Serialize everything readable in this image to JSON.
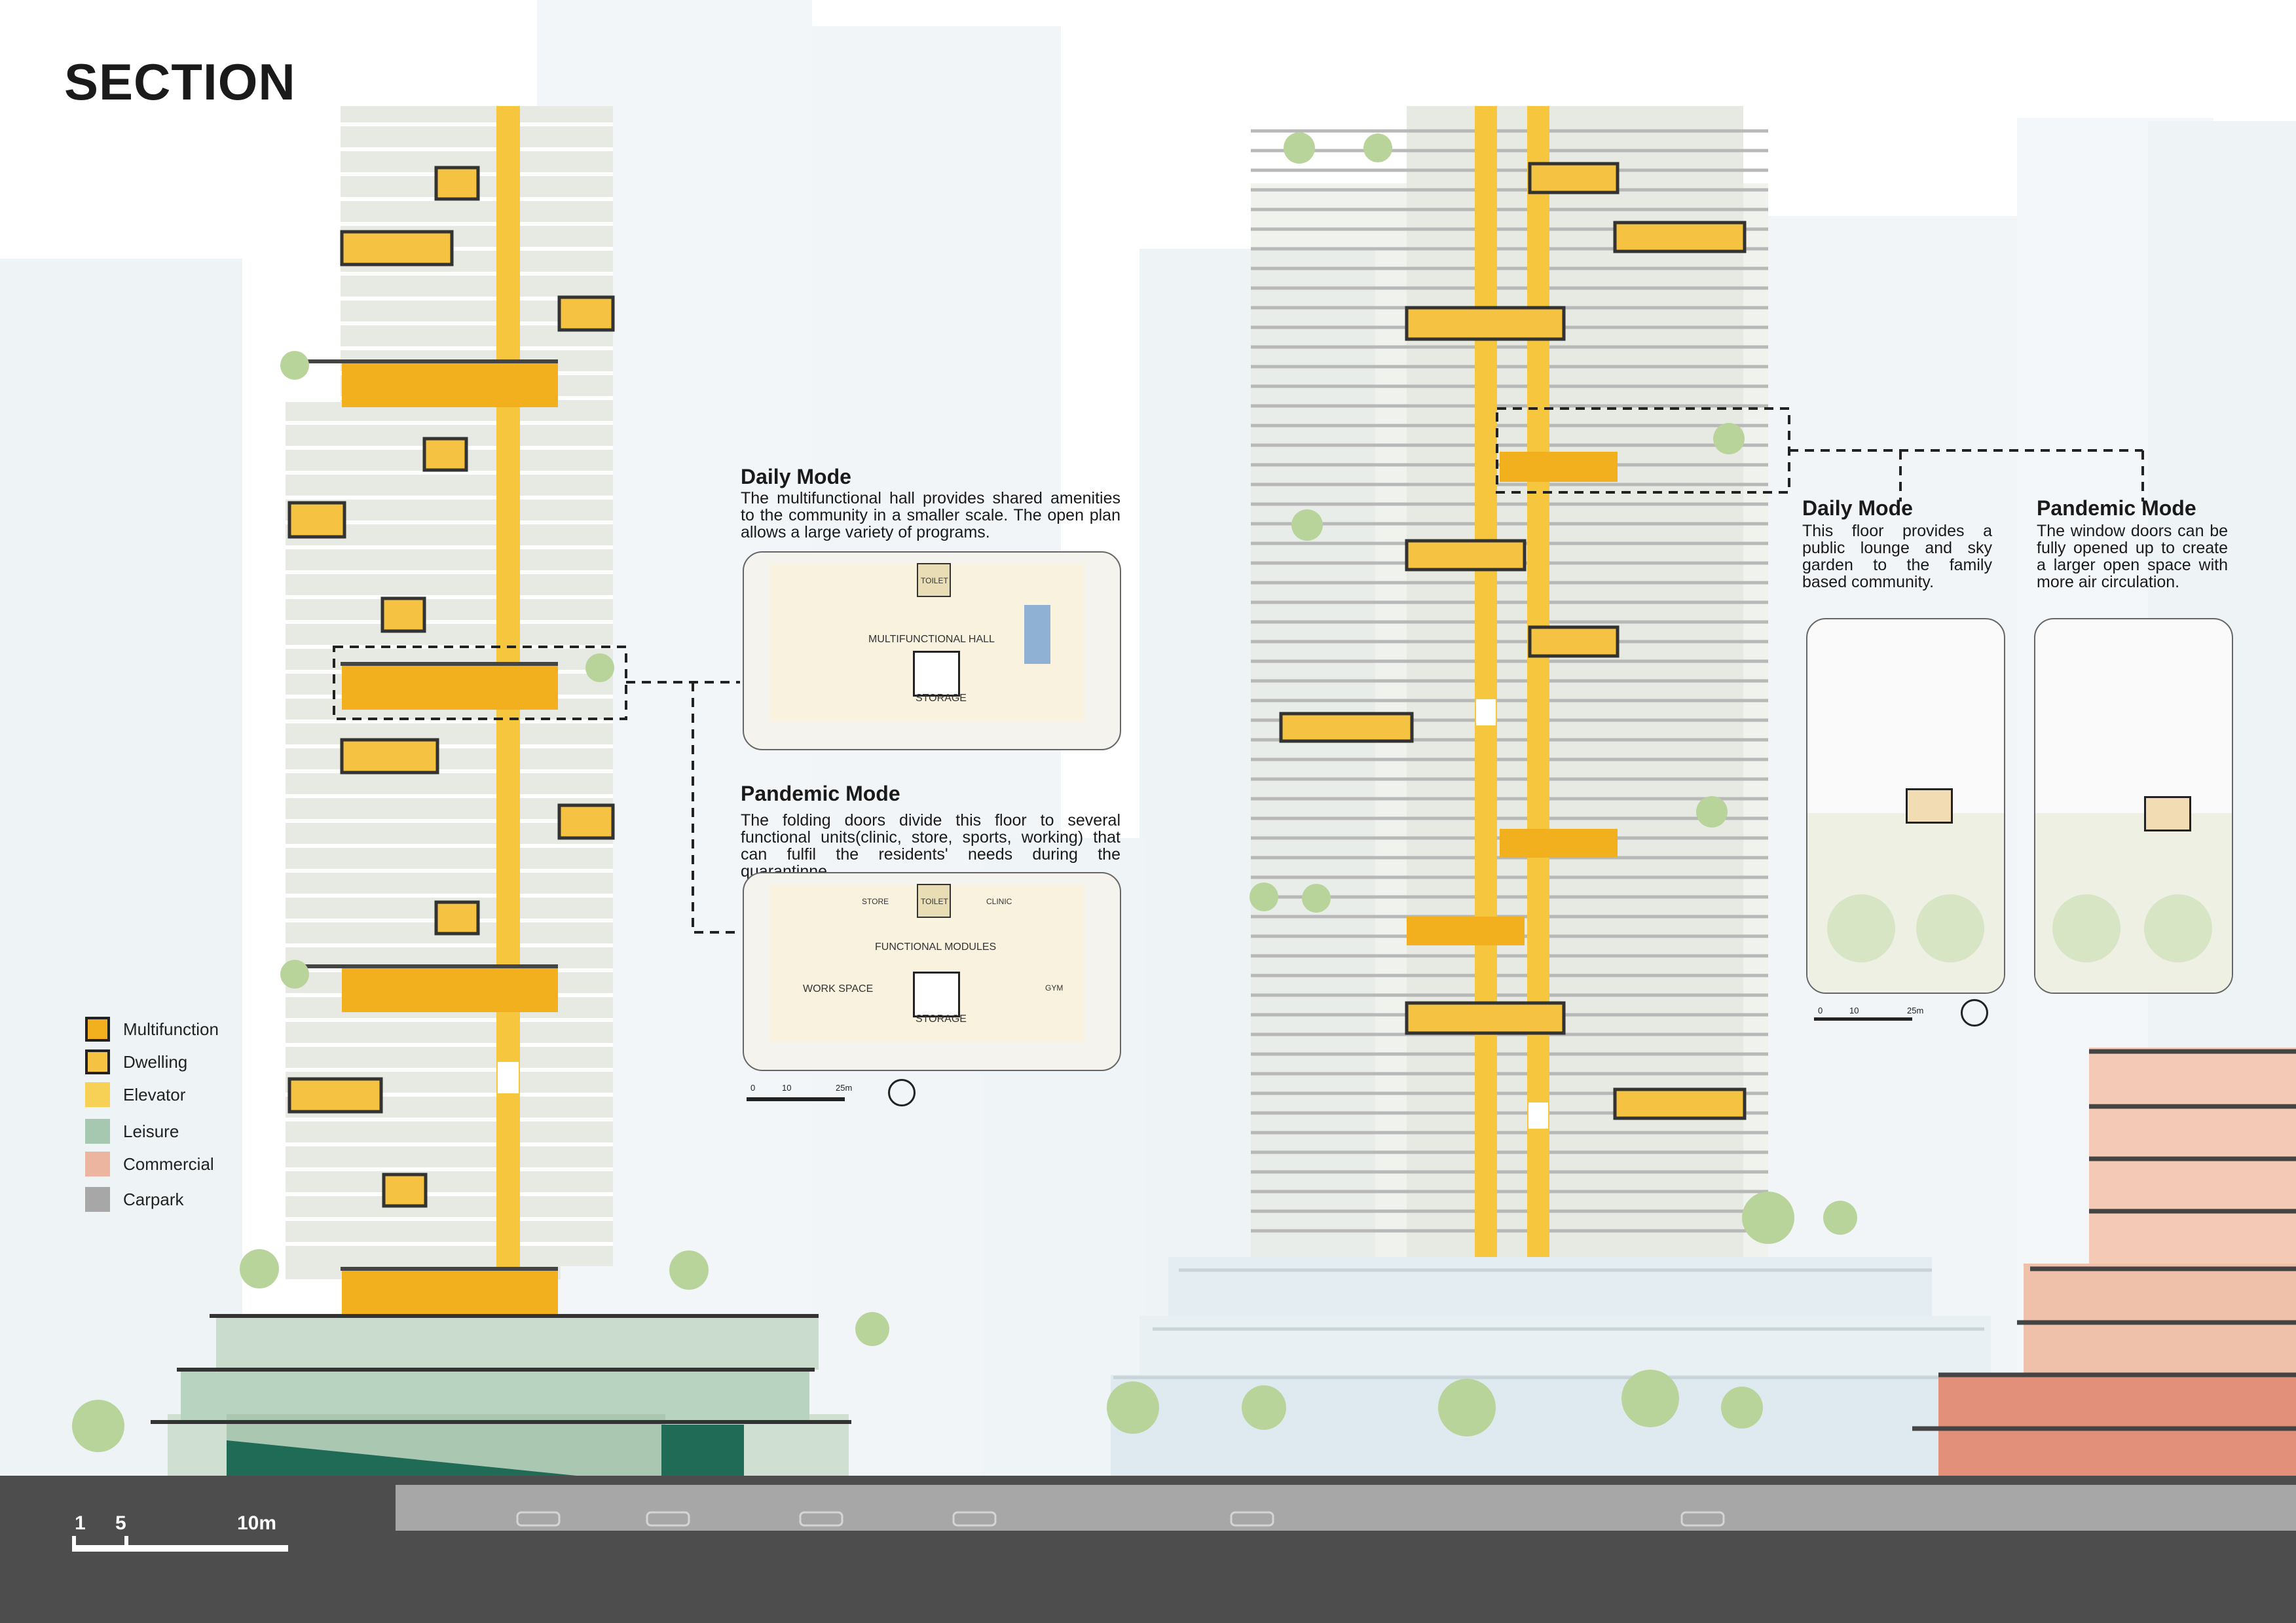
{
  "title": "SECTION",
  "left_daily": {
    "heading": "Daily Mode",
    "body": "The multifunctional hall provides shared amenities to the community in a smaller scale. The open plan allows a large variety of programs.",
    "plan_labels": {
      "hall": "MULTIFUNCTIONAL HALL",
      "storage": "STORAGE",
      "toilet": "TOILET"
    }
  },
  "left_pandemic": {
    "heading": "Pandemic Mode",
    "body": "The folding doors divide this floor to several functional units(clinic, store, sports, working) that can fulfil the residents' needs during the quarantinne.",
    "plan_labels": {
      "modules": "FUNCTIONAL MODULES",
      "workspace": "WORK SPACE",
      "storage": "STORAGE",
      "toilet": "TOILET",
      "store": "STORE",
      "clinic": "CLINIC",
      "gym": "GYM"
    }
  },
  "right_daily": {
    "heading": "Daily Mode",
    "body": "This floor provides a public lounge and sky garden to the family based community."
  },
  "right_pandemic": {
    "heading": "Pandemic Mode",
    "body": "The window doors can be fully opened up to create a larger open space with more air circulation."
  },
  "plan_scale": {
    "ticks": [
      "0",
      "10",
      "25m"
    ]
  },
  "legend": [
    {
      "label": "Multifunction",
      "color": "#f2b01e",
      "outlined": true
    },
    {
      "label": "Dwelling",
      "color": "#f5c242",
      "outlined": true
    },
    {
      "label": "Elevator",
      "color": "#f7d155",
      "outlined": false
    },
    {
      "label": "Leisure",
      "color": "#a6c8b0",
      "outlined": false
    },
    {
      "label": "Commercial",
      "color": "#ecb5a0",
      "outlined": false
    },
    {
      "label": "Carpark",
      "color": "#a7a7a7",
      "outlined": false
    }
  ],
  "scale_bar": {
    "ticks": [
      "1",
      "5",
      "10m"
    ]
  },
  "colors": {
    "multifunction": "#f2b01e",
    "dwelling": "#f5c242",
    "elevator": "#f7d155",
    "leisure": "#a6c8b0",
    "commercial": "#ecb5a0",
    "carpark": "#a7a7a7",
    "ground": "#4d4d4d",
    "tower": "#e9ece6"
  }
}
